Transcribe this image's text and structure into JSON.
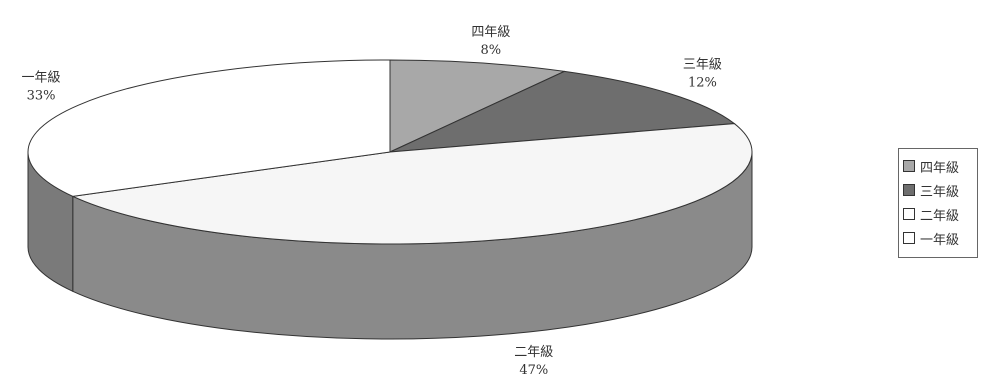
{
  "chart_data": {
    "type": "pie",
    "three_d": true,
    "legend_position": "right",
    "slices": [
      {
        "category": "四年級",
        "value": 8,
        "label": "8%",
        "color": "#a8a8a8",
        "side_color": "#8e8e8e"
      },
      {
        "category": "三年級",
        "value": 12,
        "label": "12%",
        "color": "#6e6e6e",
        "side_color": "#555555"
      },
      {
        "category": "二年級",
        "value": 47,
        "label": "47%",
        "color": "#f6f6f6",
        "side_color": "#8a8a8a"
      },
      {
        "category": "一年級",
        "value": 33,
        "label": "33%",
        "color": "#ffffff",
        "side_color": "#7a7a7a"
      }
    ]
  },
  "legend": {
    "items": [
      {
        "label": "四年級",
        "color": "#a8a8a8"
      },
      {
        "label": "三年級",
        "color": "#6e6e6e"
      },
      {
        "label": "二年級",
        "color": "#ffffff"
      },
      {
        "label": "一年級",
        "color": "#ffffff"
      }
    ]
  }
}
